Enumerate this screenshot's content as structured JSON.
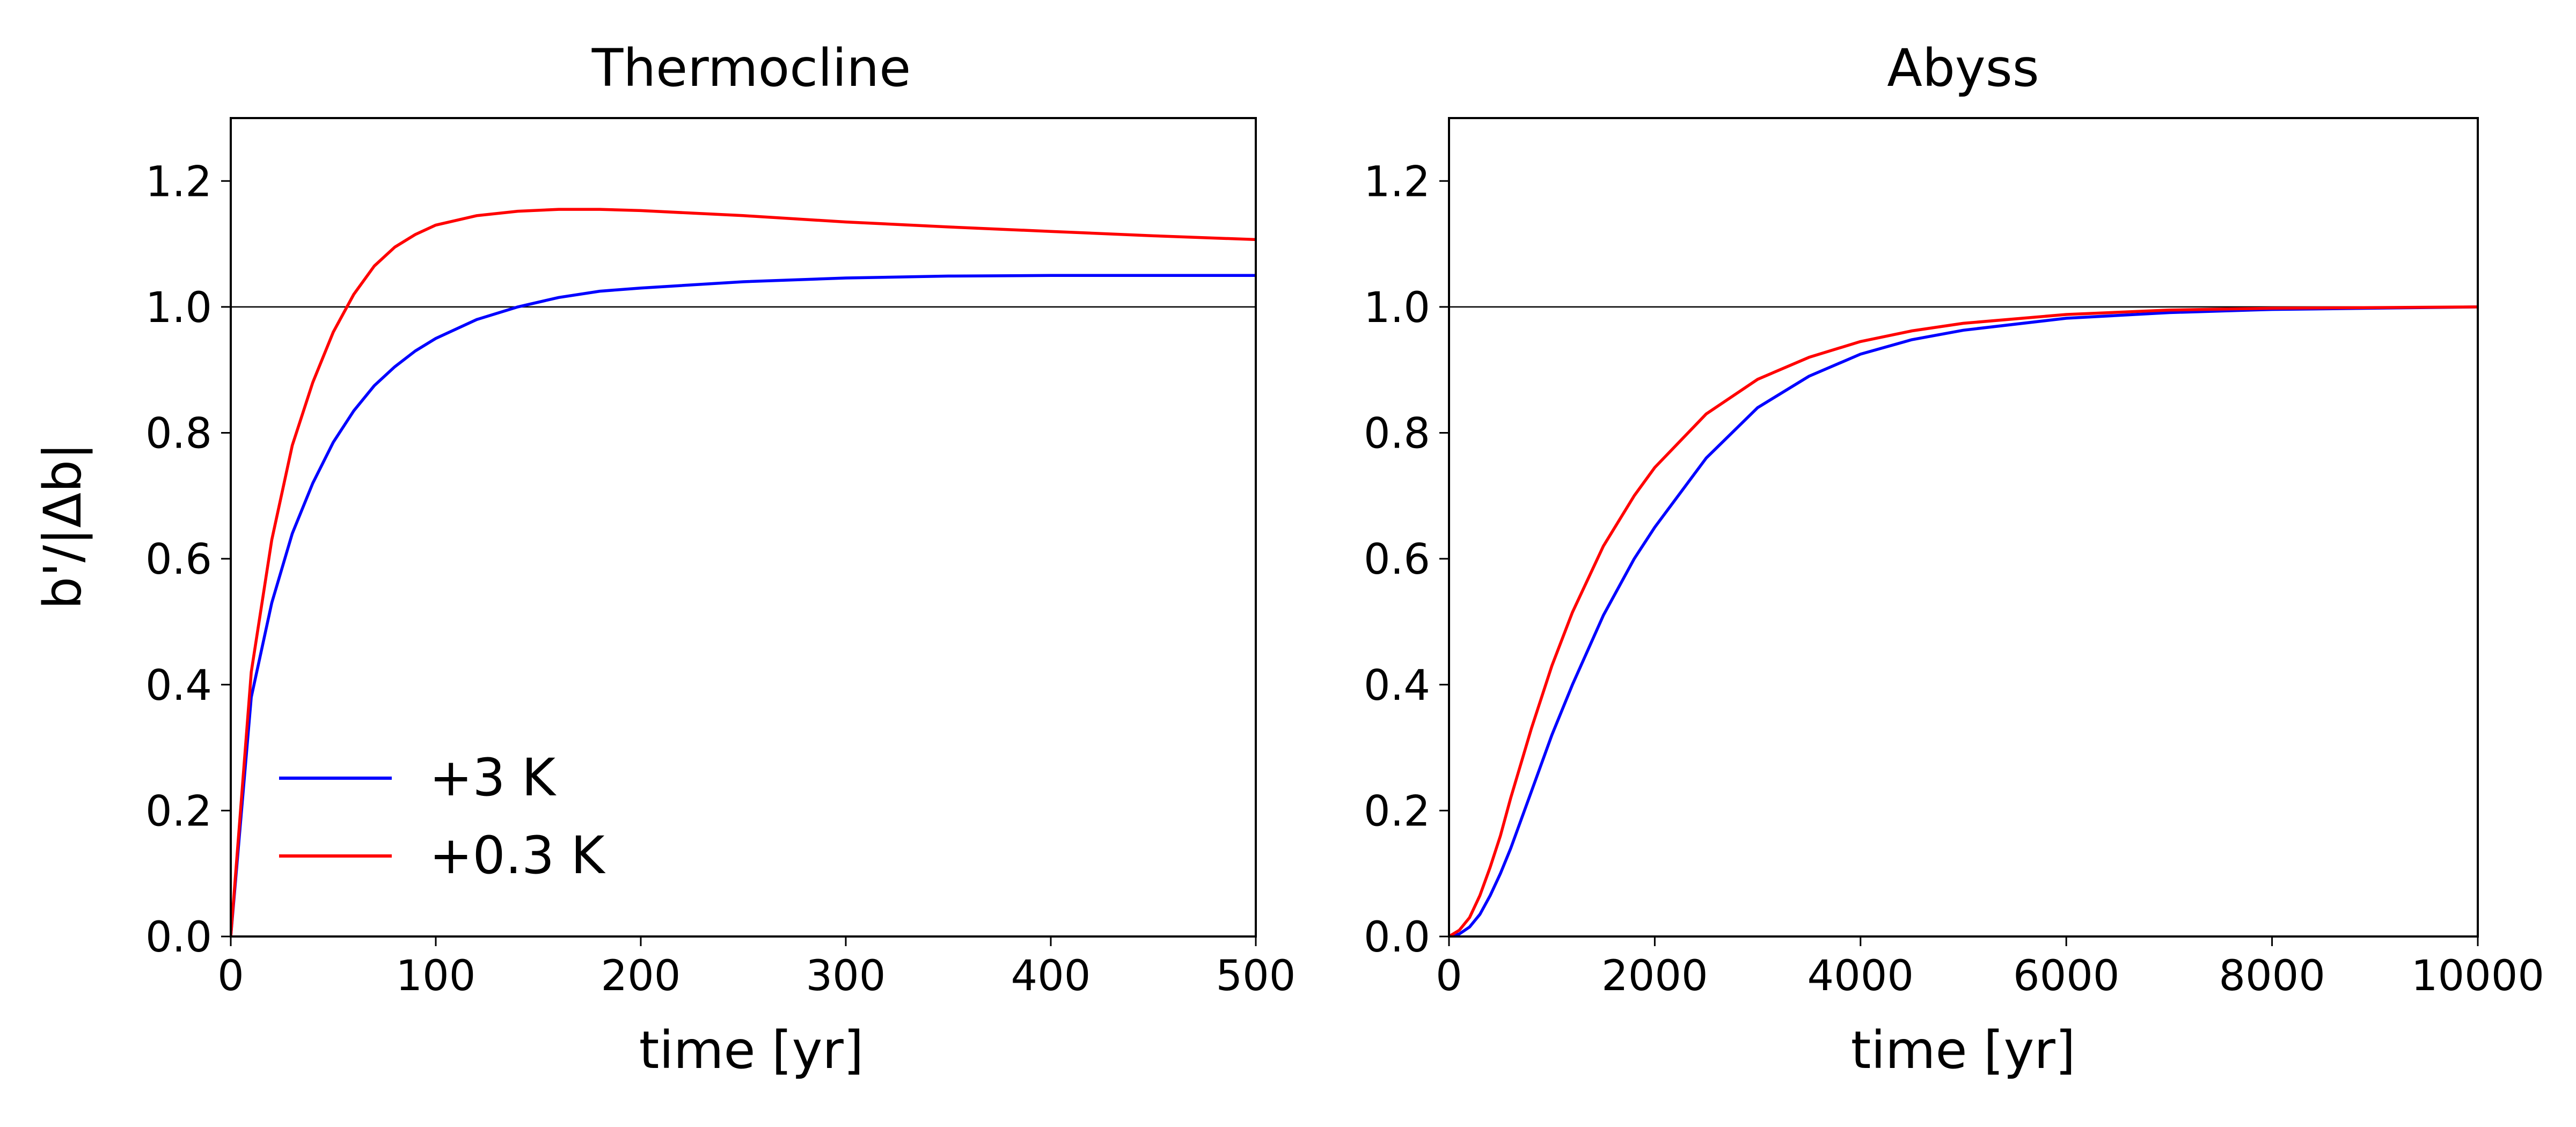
{
  "chart_data": [
    {
      "type": "line",
      "title": "Thermocline",
      "xlabel": "time [yr]",
      "ylabel": "b'/|Δb|",
      "xlim": [
        0,
        500
      ],
      "ylim": [
        0,
        1.3
      ],
      "xticks": [
        0,
        100,
        200,
        300,
        400,
        500
      ],
      "yticks": [
        0.0,
        0.2,
        0.4,
        0.6,
        0.8,
        1.0,
        1.2
      ],
      "xtick_labels": [
        "0",
        "100",
        "200",
        "300",
        "400",
        "500"
      ],
      "ytick_labels": [
        "0.0",
        "0.2",
        "0.4",
        "0.6",
        "0.8",
        "1.0",
        "1.2"
      ],
      "reference_line_y": 1.0,
      "grid": false,
      "legend": "lower-left",
      "series": [
        {
          "name": "+3 K",
          "color": "#0000ff",
          "x": [
            0,
            10,
            20,
            30,
            40,
            50,
            60,
            70,
            80,
            90,
            100,
            120,
            140,
            160,
            180,
            200,
            250,
            300,
            350,
            400,
            450,
            500
          ],
          "y": [
            0.0,
            0.38,
            0.53,
            0.64,
            0.72,
            0.785,
            0.835,
            0.875,
            0.905,
            0.93,
            0.95,
            0.98,
            1.0,
            1.015,
            1.025,
            1.03,
            1.04,
            1.046,
            1.049,
            1.05,
            1.05,
            1.05
          ]
        },
        {
          "name": "+0.3 K",
          "color": "#ff0000",
          "x": [
            0,
            10,
            20,
            30,
            40,
            50,
            60,
            70,
            80,
            90,
            100,
            120,
            140,
            160,
            180,
            200,
            250,
            300,
            350,
            400,
            450,
            500
          ],
          "y": [
            0.0,
            0.42,
            0.63,
            0.78,
            0.88,
            0.96,
            1.02,
            1.065,
            1.095,
            1.115,
            1.13,
            1.145,
            1.152,
            1.155,
            1.155,
            1.153,
            1.145,
            1.135,
            1.127,
            1.12,
            1.113,
            1.107
          ]
        }
      ]
    },
    {
      "type": "line",
      "title": "Abyss",
      "xlabel": "time [yr]",
      "ylabel": "",
      "xlim": [
        0,
        10000
      ],
      "ylim": [
        0,
        1.3
      ],
      "xticks": [
        0,
        2000,
        4000,
        6000,
        8000,
        10000
      ],
      "yticks": [
        0.0,
        0.2,
        0.4,
        0.6,
        0.8,
        1.0,
        1.2
      ],
      "xtick_labels": [
        "0",
        "2000",
        "4000",
        "6000",
        "8000",
        "10000"
      ],
      "ytick_labels": [
        "0.0",
        "0.2",
        "0.4",
        "0.6",
        "0.8",
        "1.0",
        "1.2"
      ],
      "reference_line_y": 1.0,
      "grid": false,
      "series": [
        {
          "name": "+3 K",
          "color": "#0000ff",
          "x": [
            0,
            100,
            200,
            300,
            400,
            500,
            600,
            800,
            1000,
            1200,
            1500,
            1800,
            2000,
            2500,
            3000,
            3500,
            4000,
            4500,
            5000,
            6000,
            7000,
            8000,
            9000,
            10000
          ],
          "y": [
            0.0,
            0.004,
            0.015,
            0.035,
            0.065,
            0.1,
            0.14,
            0.23,
            0.32,
            0.4,
            0.51,
            0.6,
            0.65,
            0.76,
            0.84,
            0.89,
            0.925,
            0.948,
            0.963,
            0.982,
            0.991,
            0.996,
            0.998,
            1.0
          ]
        },
        {
          "name": "+0.3 K",
          "color": "#ff0000",
          "x": [
            0,
            100,
            200,
            300,
            400,
            500,
            600,
            800,
            1000,
            1200,
            1500,
            1800,
            2000,
            2500,
            3000,
            3500,
            4000,
            4500,
            5000,
            6000,
            7000,
            8000,
            9000,
            10000
          ],
          "y": [
            0.0,
            0.01,
            0.03,
            0.065,
            0.11,
            0.16,
            0.22,
            0.33,
            0.43,
            0.515,
            0.62,
            0.7,
            0.745,
            0.83,
            0.885,
            0.92,
            0.945,
            0.962,
            0.974,
            0.988,
            0.995,
            0.998,
            0.999,
            1.0
          ]
        }
      ]
    }
  ]
}
